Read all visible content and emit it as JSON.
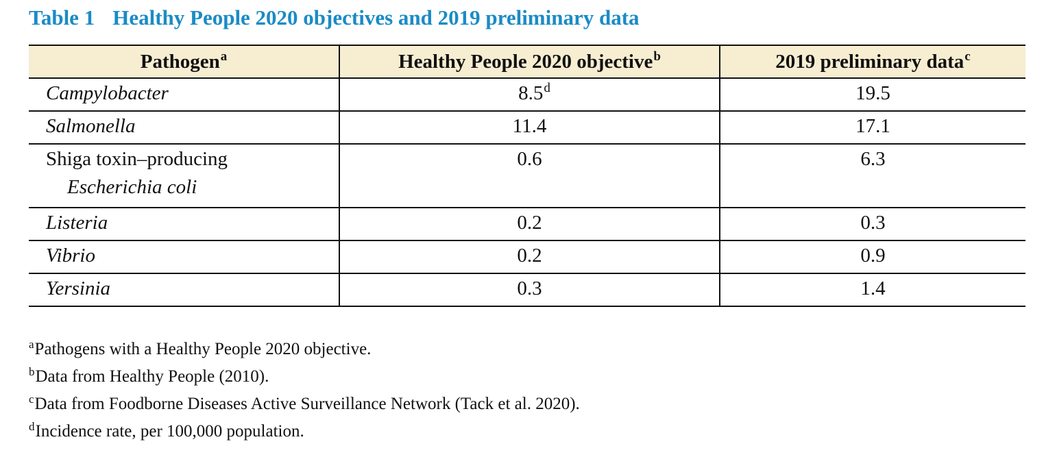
{
  "title": {
    "number": "Table 1",
    "text": "Healthy People 2020 objectives and 2019 preliminary data"
  },
  "table": {
    "headers": [
      {
        "label": "Pathogen",
        "note": "a"
      },
      {
        "label": "Healthy People 2020 objective",
        "note": "b"
      },
      {
        "label": "2019 preliminary data",
        "note": "c"
      }
    ],
    "rows": [
      {
        "pathogen": "Campylobacter",
        "objective": "8.5",
        "objective_note": "d",
        "preliminary": "19.5"
      },
      {
        "pathogen": "Salmonella",
        "objective": "11.4",
        "preliminary": "17.1"
      },
      {
        "pathogen": "Shiga toxin–producing",
        "pathogen_line2": "Escherichia coli",
        "objective": "0.6",
        "preliminary": "6.3"
      },
      {
        "pathogen": "Listeria",
        "objective": "0.2",
        "preliminary": "0.3"
      },
      {
        "pathogen": "Vibrio",
        "objective": "0.2",
        "preliminary": "0.9"
      },
      {
        "pathogen": "Yersinia",
        "objective": "0.3",
        "preliminary": "1.4"
      }
    ]
  },
  "footnotes": [
    {
      "mark": "a",
      "text": "Pathogens with a Healthy People 2020 objective."
    },
    {
      "mark": "b",
      "text": "Data from Healthy People (2010)."
    },
    {
      "mark": "c",
      "text": "Data from Foodborne Diseases Active Surveillance Network (Tack et al. 2020)."
    },
    {
      "mark": "d",
      "text": "Incidence rate, per 100,000 population."
    }
  ],
  "colors": {
    "title": "#1a8bc6",
    "header_background": "#f7edd1",
    "rule": "#111111"
  }
}
